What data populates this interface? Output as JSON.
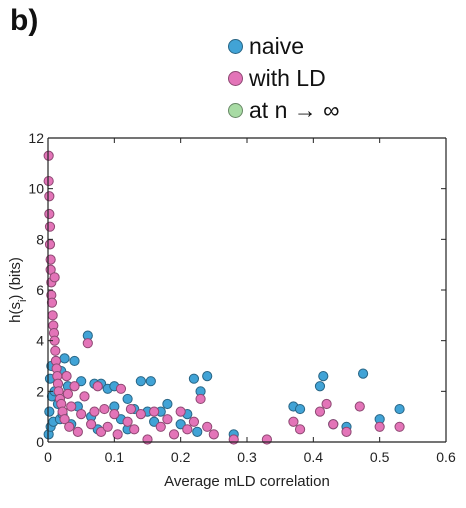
{
  "panel_label": "b)",
  "chart_data": {
    "type": "scatter",
    "title": "",
    "xlabel": "Average mLD correlation",
    "ylabel": "h(s",
    "ylabel_sub": "i",
    "ylabel_suffix": ") (bits)",
    "xlim": [
      0,
      0.6
    ],
    "ylim": [
      0,
      12
    ],
    "x_ticks": [
      0,
      0.1,
      0.2,
      0.3,
      0.4,
      0.5,
      0.6
    ],
    "x_tick_labels": [
      "0",
      "0.1",
      "0.2",
      "0.3",
      "0.4",
      "0.5",
      "0.6"
    ],
    "y_ticks": [
      0,
      2,
      4,
      6,
      8,
      10,
      12
    ],
    "y_tick_labels": [
      "0",
      "2",
      "4",
      "6",
      "8",
      "10",
      "12"
    ],
    "legend_position": "top-right",
    "series": [
      {
        "name": "naive",
        "color": "#41a3d6",
        "x": [
          0.001,
          0.002,
          0.003,
          0.004,
          0.005,
          0.006,
          0.008,
          0.01,
          0.012,
          0.015,
          0.018,
          0.02,
          0.022,
          0.025,
          0.03,
          0.035,
          0.04,
          0.045,
          0.05,
          0.06,
          0.065,
          0.07,
          0.075,
          0.08,
          0.09,
          0.1,
          0.1,
          0.11,
          0.12,
          0.12,
          0.13,
          0.14,
          0.15,
          0.155,
          0.16,
          0.17,
          0.18,
          0.2,
          0.21,
          0.22,
          0.225,
          0.23,
          0.24,
          0.28,
          0.37,
          0.38,
          0.41,
          0.415,
          0.43,
          0.45,
          0.475,
          0.5,
          0.53
        ],
        "y": [
          0.3,
          1.2,
          2.5,
          0.6,
          3.0,
          1.8,
          0.8,
          2.0,
          3.2,
          1.5,
          0.9,
          2.8,
          1.1,
          3.3,
          2.2,
          0.7,
          3.2,
          1.4,
          2.4,
          4.2,
          1.0,
          2.3,
          0.5,
          2.3,
          2.1,
          1.4,
          2.2,
          0.9,
          1.7,
          0.5,
          1.3,
          2.4,
          1.2,
          2.4,
          0.8,
          1.2,
          1.5,
          0.7,
          1.1,
          2.5,
          0.4,
          2.0,
          2.6,
          0.3,
          1.4,
          1.3,
          2.2,
          2.6,
          0.7,
          0.6,
          2.7,
          0.9,
          1.3
        ]
      },
      {
        "name": "with LD",
        "color": "#e374b8",
        "x": [
          0.001,
          0.001,
          0.002,
          0.002,
          0.003,
          0.003,
          0.004,
          0.004,
          0.005,
          0.005,
          0.006,
          0.007,
          0.008,
          0.009,
          0.01,
          0.01,
          0.011,
          0.012,
          0.013,
          0.014,
          0.015,
          0.016,
          0.018,
          0.02,
          0.022,
          0.025,
          0.028,
          0.03,
          0.032,
          0.035,
          0.04,
          0.045,
          0.05,
          0.055,
          0.06,
          0.065,
          0.07,
          0.075,
          0.08,
          0.085,
          0.09,
          0.1,
          0.105,
          0.11,
          0.12,
          0.125,
          0.13,
          0.14,
          0.15,
          0.16,
          0.17,
          0.18,
          0.19,
          0.2,
          0.21,
          0.22,
          0.23,
          0.24,
          0.25,
          0.28,
          0.33,
          0.37,
          0.38,
          0.41,
          0.42,
          0.43,
          0.45,
          0.47,
          0.5,
          0.53
        ],
        "y": [
          11.3,
          10.3,
          9.7,
          9.0,
          8.5,
          7.8,
          7.2,
          6.8,
          6.3,
          5.8,
          5.5,
          5.0,
          4.6,
          4.3,
          4.0,
          6.5,
          3.6,
          3.2,
          2.9,
          2.6,
          2.3,
          2.0,
          1.7,
          1.5,
          1.2,
          0.9,
          2.6,
          1.9,
          0.6,
          1.4,
          2.2,
          0.4,
          1.1,
          1.8,
          3.9,
          0.7,
          1.2,
          2.2,
          0.4,
          1.3,
          0.6,
          1.1,
          0.3,
          2.1,
          0.8,
          1.3,
          0.5,
          1.1,
          0.1,
          1.2,
          0.6,
          0.9,
          0.3,
          1.2,
          0.5,
          0.8,
          1.7,
          0.6,
          0.3,
          0.1,
          0.1,
          0.8,
          0.5,
          1.2,
          1.5,
          0.7,
          0.4,
          1.4,
          0.6,
          0.6
        ]
      },
      {
        "name": "at n → ∞",
        "color": "#a8dba4",
        "x": [],
        "y": []
      }
    ]
  }
}
